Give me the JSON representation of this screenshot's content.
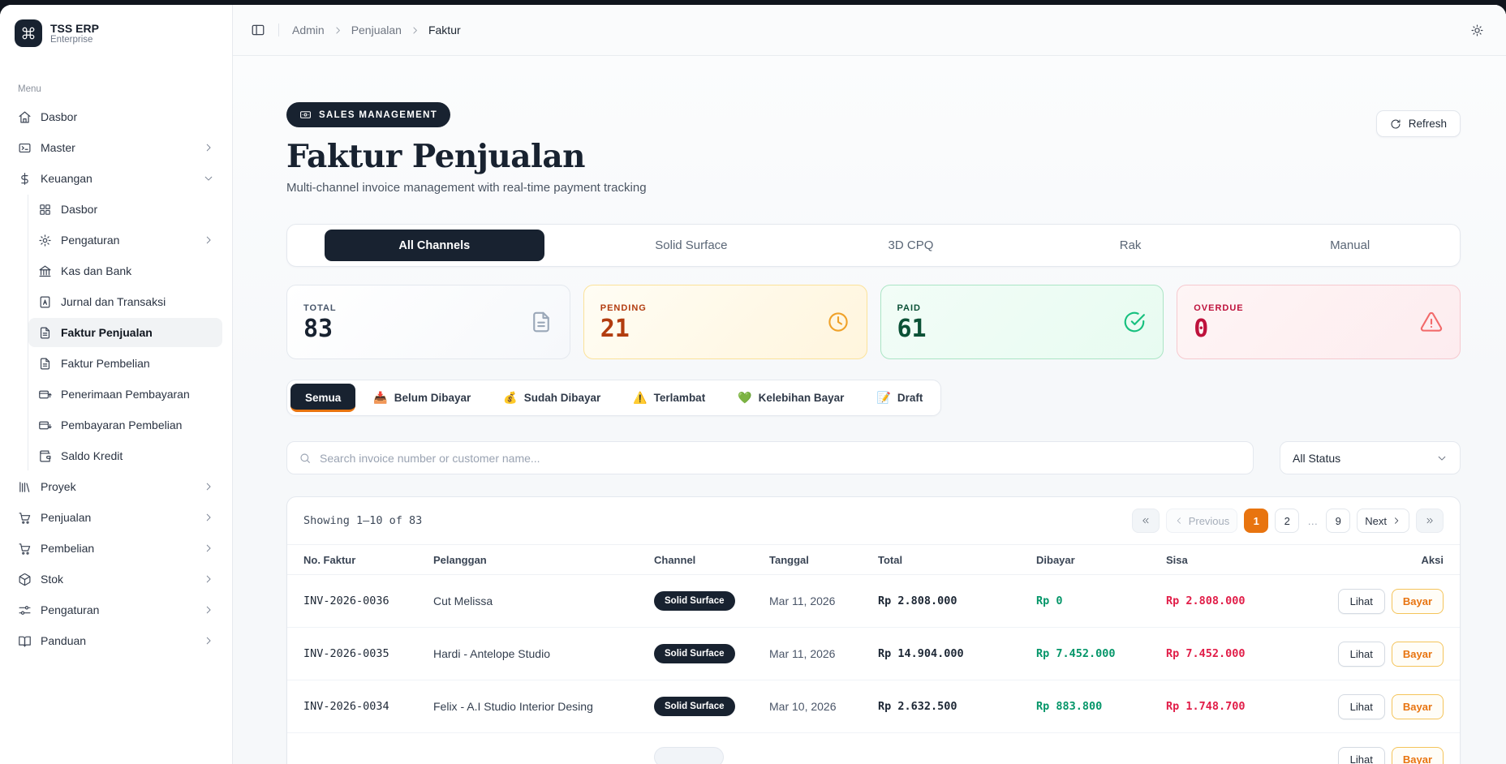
{
  "sidebar": {
    "logo": {
      "title": "TSS ERP",
      "subtitle": "Enterprise",
      "icon": "command-icon"
    },
    "section_label": "Menu",
    "items": [
      {
        "label": "Dasbor",
        "icon": "home-icon"
      },
      {
        "label": "Master",
        "icon": "app-window-icon",
        "chevron": "right"
      },
      {
        "label": "Keuangan",
        "icon": "dollar-icon",
        "chevron": "down",
        "expanded": true,
        "children": [
          {
            "label": "Dasbor",
            "icon": "grid-icon"
          },
          {
            "label": "Pengaturan",
            "icon": "gear-icon",
            "chevron": "right"
          },
          {
            "label": "Kas dan Bank",
            "icon": "bank-icon"
          },
          {
            "label": "Jurnal dan Transaksi",
            "icon": "journal-icon"
          },
          {
            "label": "Faktur Penjualan",
            "icon": "file-icon",
            "active": true
          },
          {
            "label": "Faktur Pembelian",
            "icon": "file-icon"
          },
          {
            "label": "Penerimaan Pembayaran",
            "icon": "card-up-icon"
          },
          {
            "label": "Pembayaran Pembelian",
            "icon": "card-down-icon"
          },
          {
            "label": "Saldo Kredit",
            "icon": "wallet-icon"
          }
        ]
      },
      {
        "label": "Proyek",
        "icon": "library-icon",
        "chevron": "right"
      },
      {
        "label": "Penjualan",
        "icon": "cart-icon",
        "chevron": "right"
      },
      {
        "label": "Pembelian",
        "icon": "cart-icon",
        "chevron": "right"
      },
      {
        "label": "Stok",
        "icon": "package-icon",
        "chevron": "right"
      },
      {
        "label": "Pengaturan",
        "icon": "sliders-icon",
        "chevron": "right"
      },
      {
        "label": "Panduan",
        "icon": "book-icon",
        "chevron": "right"
      }
    ]
  },
  "header": {
    "toggle_icon": "panel-left-icon",
    "breadcrumb": [
      {
        "label": "Admin"
      },
      {
        "label": "Penjualan"
      },
      {
        "label": "Faktur",
        "current": true
      }
    ],
    "theme_icon": "sun-icon"
  },
  "hero": {
    "badge": "SALES MANAGEMENT",
    "badge_icon": "banknote-icon",
    "title": "Faktur Penjualan",
    "subtitle": "Multi-channel invoice management with real-time payment tracking",
    "refresh_label": "Refresh",
    "refresh_icon": "refresh-icon"
  },
  "channel_tabs": [
    {
      "label": "All Channels",
      "active": true
    },
    {
      "label": "Solid Surface"
    },
    {
      "label": "3D CPQ"
    },
    {
      "label": "Rak"
    },
    {
      "label": "Manual"
    }
  ],
  "stats": [
    {
      "label": "TOTAL",
      "value": "83",
      "theme": "default",
      "icon": "file-text-icon"
    },
    {
      "label": "PENDING",
      "value": "21",
      "theme": "pending",
      "icon": "clock-icon"
    },
    {
      "label": "PAID",
      "value": "61",
      "theme": "paid",
      "icon": "check-circle-icon"
    },
    {
      "label": "OVERDUE",
      "value": "0",
      "theme": "overdue",
      "icon": "alert-triangle-icon"
    }
  ],
  "filter_tabs": [
    {
      "label": "Semua",
      "active": true
    },
    {
      "emoji": "📥",
      "label": "Belum Dibayar"
    },
    {
      "emoji": "💰",
      "label": "Sudah Dibayar"
    },
    {
      "emoji": "⚠️",
      "label": "Terlambat"
    },
    {
      "emoji": "💚",
      "label": "Kelebihan Bayar"
    },
    {
      "emoji": "📝",
      "label": "Draft"
    }
  ],
  "search": {
    "placeholder": "Search invoice number or customer name..."
  },
  "status_filter": {
    "value": "All Status"
  },
  "table": {
    "showing": "Showing 1–10 of 83",
    "pagination": {
      "items": [
        {
          "kind": "first",
          "label": "«"
        },
        {
          "kind": "prev",
          "label": "Previous",
          "disabled": true
        },
        {
          "kind": "page",
          "label": "1",
          "active": true
        },
        {
          "kind": "page",
          "label": "2"
        },
        {
          "kind": "ellipsis",
          "label": "…"
        },
        {
          "kind": "page",
          "label": "9"
        },
        {
          "kind": "next",
          "label": "Next"
        },
        {
          "kind": "last",
          "label": "»"
        }
      ]
    },
    "columns": [
      "No. Faktur",
      "Pelanggan",
      "Channel",
      "Tanggal",
      "Total",
      "Dibayar",
      "Sisa",
      "Aksi"
    ],
    "actions": {
      "view": "Lihat",
      "pay": "Bayar"
    },
    "rows": [
      {
        "no": "INV-2026-0036",
        "customer": "Cut Melissa",
        "channel": "Solid Surface",
        "channel_style": "dark",
        "date": "Mar 11, 2026",
        "total": "Rp 2.808.000",
        "paid": "Rp 0",
        "remaining": "Rp 2.808.000"
      },
      {
        "no": "INV-2026-0035",
        "customer": "Hardi - Antelope Studio",
        "channel": "Solid Surface",
        "channel_style": "dark",
        "date": "Mar 11, 2026",
        "total": "Rp 14.904.000",
        "paid": "Rp 7.452.000",
        "remaining": "Rp 7.452.000"
      },
      {
        "no": "INV-2026-0034",
        "customer": "Felix - A.I Studio Interior Desing",
        "channel": "Solid Surface",
        "channel_style": "dark",
        "date": "Mar 10, 2026",
        "total": "Rp 2.632.500",
        "paid": "Rp 883.800",
        "remaining": "Rp 1.748.700"
      },
      {
        "no": "",
        "customer": "",
        "channel": "",
        "channel_style": "light",
        "date": "",
        "total": "",
        "paid": "",
        "remaining": "",
        "partial": true
      }
    ]
  },
  "colors": {
    "dark_navy": "#182230",
    "accent_orange": "#E8740F",
    "money_green": "#059669",
    "money_red": "#E11D48"
  }
}
